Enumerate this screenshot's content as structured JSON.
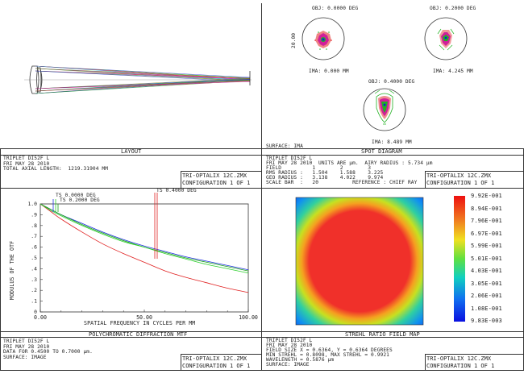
{
  "layout": {
    "panel_title": "LAYOUT",
    "info_lines": [
      "TRIPLET DI52F L",
      "FRI MAY 28 2010",
      "TOTAL AXIAL LENGTH:  1219.31904 MM"
    ],
    "file": "TRI-OPTALIX 12C.ZMX",
    "config": "CONFIGURATION 1 OF 1"
  },
  "spot": {
    "panel_title": "SPOT DIAGRAM",
    "fields": [
      {
        "obj": "OBJ: 0.0000 DEG",
        "ima": "IMA: 0.000 MM"
      },
      {
        "obj": "OBJ: 0.2000 DEG",
        "ima": "IMA: 4.245 MM"
      },
      {
        "obj": "OBJ: 0.4000 DEG",
        "ima": "IMA: 8.489 MM"
      }
    ],
    "scale_label": "20.00",
    "surface": "SURFACE: IMA",
    "info_lines": [
      "TRIPLET DI52F L",
      "FRI MAY 28 2010  UNITS ARE µm.  AIRY RADIUS : 5.734 µm",
      "FIELD          1        2        3",
      "RMS RADIUS :   1.504    1.588    3.225",
      "GEO RADIUS :   3.138    4.022    9.974",
      "SCALE BAR  :   20           REFERENCE : CHIEF RAY"
    ],
    "file": "TRI-OPTALIX 12C.ZMX",
    "config": "CONFIGURATION 1 OF 1"
  },
  "mtf": {
    "panel_title": "POLYCHROMATIC DIFFRACTION MTF",
    "ylabel": "MODULUS OF THE OTF",
    "xlabel": "SPATIAL FREQUENCY IN CYCLES PER MM",
    "ts_labels": [
      "TS 0.0000 DEG",
      "TS 0.2000 DEG",
      "TS 0.4000 DEG"
    ],
    "info_lines": [
      "TRIPLET DI52F L",
      "FRI MAY 28 2010",
      "DATA FOR 0.4500 TO 0.7000 µm.",
      "SURFACE: IMAGE"
    ],
    "file": "TRI-OPTALIX 12C.ZMX",
    "config": "CONFIGURATION 1 OF 1"
  },
  "strehl": {
    "panel_title": "STREHL RATIO FIELD MAP",
    "legend": [
      "9.92E-001",
      "8.94E-001",
      "7.96E-001",
      "6.97E-001",
      "5.99E-001",
      "5.01E-001",
      "4.03E-001",
      "3.05E-001",
      "2.06E-001",
      "1.08E-001",
      "9.83E-003"
    ],
    "info_lines": [
      "TRIPLET DI52F L",
      "FRI MAY 28 2010",
      "FIELD SIZE X = 0.6364, Y = 0.6364 DEGREES",
      "MIN STREHL = 0.8098, MAX STREHL = 0.9921",
      "WAVELENGTH = 0.5876 µm",
      "SURFACE: IMAGE"
    ],
    "file": "TRI-OPTALIX 12C.ZMX",
    "config": "CONFIGURATION 1 OF 1"
  },
  "chart_data": {
    "type": "line",
    "title": "POLYCHROMATIC DIFFRACTION MTF",
    "xlabel": "SPATIAL FREQUENCY IN CYCLES PER MM",
    "ylabel": "MODULUS OF THE OTF",
    "xlim": [
      0,
      100
    ],
    "ylim": [
      0,
      1
    ],
    "x_ticks": [
      "0.00",
      "50.00",
      "100.00"
    ],
    "y_ticks": [
      "0",
      ".1",
      ".2",
      ".3",
      ".4",
      ".5",
      ".6",
      ".7",
      ".8",
      ".9",
      "1.0"
    ],
    "x": [
      0,
      5,
      10,
      20,
      30,
      40,
      50,
      60,
      70,
      80,
      90,
      100
    ],
    "series": [
      {
        "name": "TS 0.0000 DEG",
        "color": "#1f2fe0",
        "values": [
          1.0,
          0.95,
          0.9,
          0.82,
          0.74,
          0.67,
          0.61,
          0.56,
          0.51,
          0.47,
          0.43,
          0.39
        ]
      },
      {
        "name": "TS 0.0000 DEG (S)",
        "color": "#1aa01a",
        "values": [
          1.0,
          0.95,
          0.9,
          0.81,
          0.73,
          0.66,
          0.6,
          0.55,
          0.5,
          0.46,
          0.42,
          0.38
        ]
      },
      {
        "name": "TS 0.2000 DEG",
        "color": "#e01f1f",
        "values": [
          1.0,
          0.93,
          0.86,
          0.74,
          0.63,
          0.54,
          0.46,
          0.38,
          0.32,
          0.27,
          0.22,
          0.18
        ]
      },
      {
        "name": "TS 0.4000 DEG",
        "color": "#2cd02c",
        "values": [
          1.0,
          0.94,
          0.89,
          0.8,
          0.72,
          0.65,
          0.6,
          0.54,
          0.49,
          0.44,
          0.4,
          0.36
        ]
      }
    ],
    "grid": false
  },
  "colors": {
    "red": "#f0302a",
    "blue": "#1020d8",
    "green": "#22b022"
  }
}
